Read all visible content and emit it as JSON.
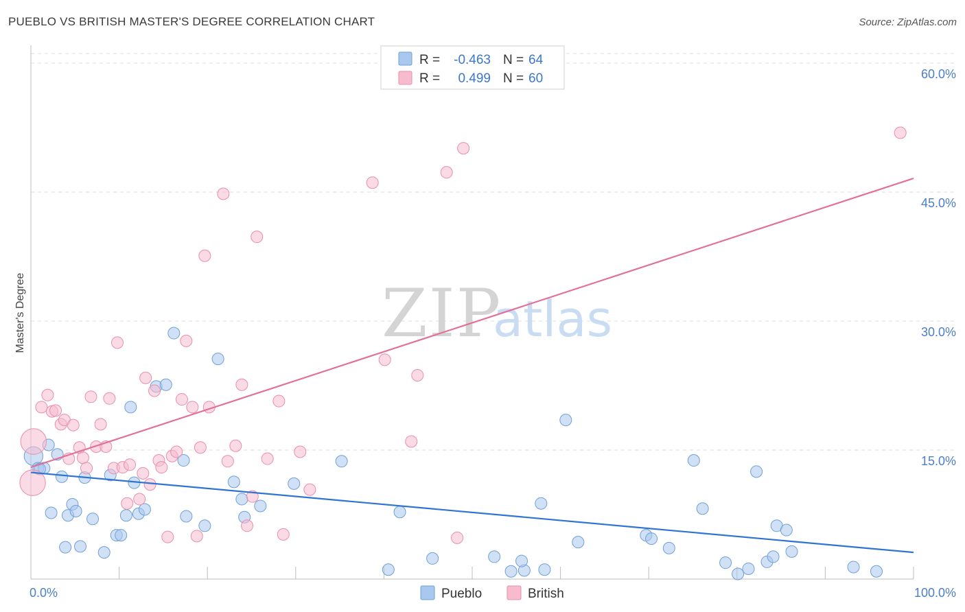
{
  "title": "PUEBLO VS BRITISH MASTER'S DEGREE CORRELATION CHART",
  "source": "Source: ZipAtlas.com",
  "watermark": {
    "zip": "ZIP",
    "atlas": "atlas"
  },
  "colors": {
    "pueblo_fill": "#a9c8ee",
    "pueblo_stroke": "#6f9fd8",
    "pueblo_line": "#2f74d0",
    "british_fill": "#f6bccd",
    "british_stroke": "#e98eab",
    "british_line": "#e2719a",
    "tick_label": "#4a7ec8",
    "grid": "#dcdcdc"
  },
  "legend": {
    "rows": [
      {
        "r_label": "R =",
        "r_value": "-0.463",
        "n_label": "N =",
        "n_value": "64"
      },
      {
        "r_label": "R =",
        "r_value": "0.499",
        "n_label": "N =",
        "n_value": "60"
      }
    ]
  },
  "bottom_legend": [
    "Pueblo",
    "British"
  ],
  "chart_data": {
    "type": "scatter",
    "title": "PUEBLO VS BRITISH MASTER'S DEGREE CORRELATION CHART",
    "xlabel": "",
    "ylabel": "Master's Degree",
    "xlim": [
      0,
      100
    ],
    "ylim": [
      0,
      60
    ],
    "x_tick_labels": [
      "0.0%",
      "100.0%"
    ],
    "y_ticks": [
      15,
      30,
      45,
      60
    ],
    "y_tick_labels": [
      "15.0%",
      "30.0%",
      "45.0%",
      "60.0%"
    ],
    "grid": true,
    "legend_position": "top-center",
    "series": [
      {
        "name": "Pueblo",
        "color": "#a9c8ee",
        "r": -0.463,
        "n": 64,
        "trend": {
          "x": [
            0,
            100
          ],
          "y": [
            12.4,
            3.1
          ]
        },
        "points": [
          [
            0.3,
            14.3,
            1.6
          ],
          [
            0.8,
            12.9,
            1
          ],
          [
            1.5,
            12.9,
            1
          ],
          [
            2,
            15.6,
            1
          ],
          [
            2.3,
            7.7,
            1
          ],
          [
            3,
            14.5,
            1
          ],
          [
            3.5,
            11.9,
            1
          ],
          [
            3.9,
            3.7,
            1
          ],
          [
            4.2,
            7.4,
            1
          ],
          [
            4.7,
            8.7,
            1
          ],
          [
            5.1,
            7.9,
            1
          ],
          [
            5.6,
            3.8,
            1
          ],
          [
            6.1,
            11.8,
            1
          ],
          [
            7,
            7,
            1
          ],
          [
            8.3,
            3.1,
            1
          ],
          [
            9,
            12.1,
            1
          ],
          [
            9.7,
            5.1,
            1
          ],
          [
            10.2,
            5.1,
            1
          ],
          [
            10.8,
            7.4,
            1
          ],
          [
            11.3,
            20,
            1
          ],
          [
            11.7,
            11.2,
            1
          ],
          [
            12.2,
            7.6,
            1
          ],
          [
            12.9,
            8.1,
            1
          ],
          [
            14.2,
            22.4,
            1
          ],
          [
            15.3,
            22.6,
            1
          ],
          [
            16.2,
            28.6,
            1
          ],
          [
            17.6,
            7.3,
            1
          ],
          [
            17.3,
            13.8,
            1
          ],
          [
            19.7,
            6.2,
            1
          ],
          [
            21.2,
            25.6,
            1
          ],
          [
            23,
            11.3,
            1
          ],
          [
            23.9,
            9.3,
            1
          ],
          [
            24.2,
            7.2,
            1
          ],
          [
            26,
            8.5,
            1
          ],
          [
            29.8,
            11.1,
            1
          ],
          [
            35.2,
            13.7,
            1
          ],
          [
            40.5,
            1.1,
            1
          ],
          [
            41.8,
            7.8,
            1
          ],
          [
            45.5,
            2.4,
            1
          ],
          [
            52.5,
            2.6,
            1
          ],
          [
            54.4,
            0.9,
            1
          ],
          [
            55.9,
            1,
            1
          ],
          [
            55.6,
            2.1,
            1
          ],
          [
            58.2,
            1.1,
            1
          ],
          [
            57.8,
            8.8,
            1
          ],
          [
            60.6,
            18.5,
            1
          ],
          [
            62,
            4.3,
            1
          ],
          [
            69.7,
            5.1,
            1
          ],
          [
            70.3,
            4.7,
            1
          ],
          [
            72.3,
            3.6,
            1
          ],
          [
            75.1,
            13.8,
            1
          ],
          [
            76.1,
            8.2,
            1
          ],
          [
            78.7,
            1.9,
            1
          ],
          [
            80.1,
            0.6,
            1
          ],
          [
            81.3,
            1.2,
            1
          ],
          [
            82.2,
            12.5,
            1
          ],
          [
            83.4,
            2,
            1
          ],
          [
            84.1,
            2.6,
            1
          ],
          [
            84.5,
            6.2,
            1
          ],
          [
            85.6,
            5.7,
            1
          ],
          [
            86.2,
            3.2,
            1
          ],
          [
            93.2,
            1.4,
            1
          ],
          [
            95.8,
            0.9,
            1
          ],
          [
            1,
            12.8,
            1
          ]
        ]
      },
      {
        "name": "British",
        "color": "#f6bccd",
        "r": 0.499,
        "n": 60,
        "trend": {
          "x": [
            0,
            100
          ],
          "y": [
            13.0,
            46.6
          ]
        },
        "points": [
          [
            0.3,
            16,
            2.2
          ],
          [
            0.2,
            11.2,
            2.2
          ],
          [
            1.2,
            20,
            1
          ],
          [
            1.9,
            21.4,
            1
          ],
          [
            2.4,
            19.5,
            1
          ],
          [
            2.8,
            19.6,
            1
          ],
          [
            3.4,
            18,
            1
          ],
          [
            3.8,
            18.5,
            1
          ],
          [
            4.3,
            14,
            1
          ],
          [
            4.8,
            17.9,
            1
          ],
          [
            5.5,
            15.3,
            1
          ],
          [
            5.9,
            14.1,
            1
          ],
          [
            6.3,
            12.9,
            1
          ],
          [
            6.8,
            21.2,
            1
          ],
          [
            7.4,
            15.4,
            1
          ],
          [
            7.9,
            18,
            1
          ],
          [
            8.5,
            15.4,
            1
          ],
          [
            8.9,
            21,
            1
          ],
          [
            9.4,
            12.9,
            1
          ],
          [
            9.8,
            27.5,
            1
          ],
          [
            10.4,
            13,
            1
          ],
          [
            10.9,
            8.8,
            1
          ],
          [
            11.2,
            13.3,
            1
          ],
          [
            12.3,
            9.3,
            1
          ],
          [
            12.7,
            12.3,
            1
          ],
          [
            13,
            23.4,
            1
          ],
          [
            13.5,
            11,
            1
          ],
          [
            14,
            21.9,
            1
          ],
          [
            14.5,
            13.8,
            1
          ],
          [
            14.8,
            13,
            1
          ],
          [
            15.5,
            4.9,
            1
          ],
          [
            16,
            14.3,
            1
          ],
          [
            16.5,
            14.8,
            1
          ],
          [
            17.1,
            20.9,
            1
          ],
          [
            17.6,
            27.7,
            1
          ],
          [
            18.3,
            20,
            1
          ],
          [
            18.8,
            5,
            1
          ],
          [
            19.2,
            15.3,
            1
          ],
          [
            19.7,
            37.6,
            1
          ],
          [
            20.2,
            20,
            1
          ],
          [
            21.8,
            44.8,
            1
          ],
          [
            22.3,
            13.7,
            1
          ],
          [
            23.2,
            15.5,
            1
          ],
          [
            23.9,
            22.6,
            1
          ],
          [
            24.5,
            6.2,
            1
          ],
          [
            25.1,
            9.6,
            1
          ],
          [
            25.6,
            39.8,
            1
          ],
          [
            26.8,
            14,
            1
          ],
          [
            28.1,
            20.7,
            1
          ],
          [
            28.6,
            5.2,
            1
          ],
          [
            30.5,
            14.8,
            1
          ],
          [
            31.6,
            10.4,
            1
          ],
          [
            38.7,
            46.1,
            1
          ],
          [
            40.1,
            25.5,
            1
          ],
          [
            43.1,
            16,
            1
          ],
          [
            43.8,
            23.7,
            1
          ],
          [
            47.1,
            47.3,
            1
          ],
          [
            48.3,
            4.8,
            1
          ],
          [
            49,
            50.1,
            1
          ],
          [
            98.5,
            51.9,
            1
          ]
        ]
      }
    ]
  }
}
